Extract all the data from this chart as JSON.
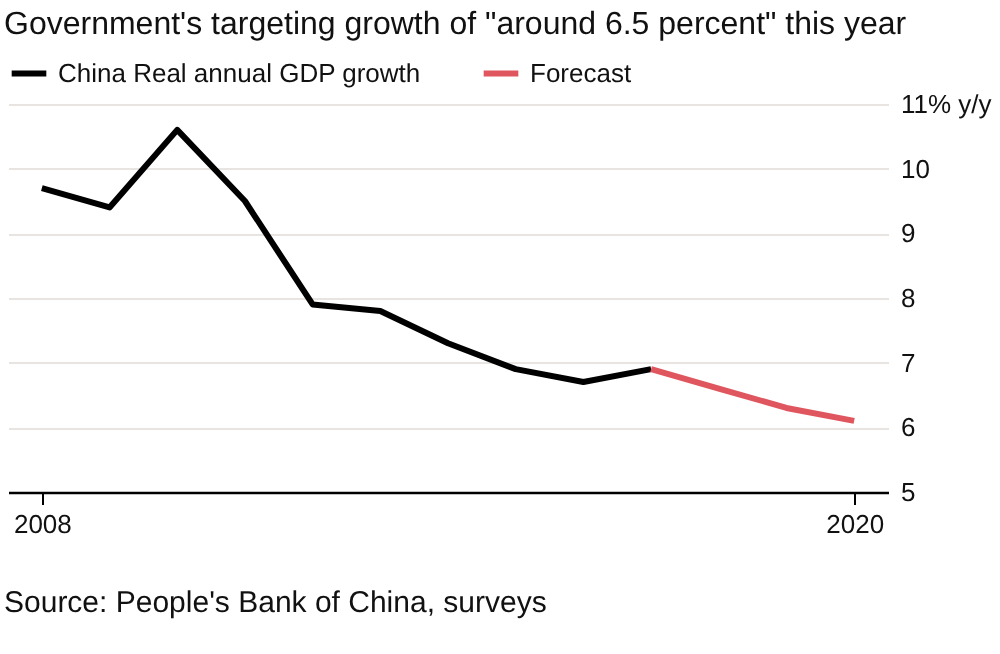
{
  "chart_data": {
    "type": "line",
    "title": "Government's targeting growth of \"around 6.5 percent\" this year",
    "x": [
      2008,
      2009,
      2010,
      2011,
      2012,
      2013,
      2014,
      2015,
      2016,
      2017,
      2018,
      2019,
      2020
    ],
    "series": [
      {
        "name": "China Real annual GDP growth",
        "color": "#000000",
        "values": [
          9.7,
          9.4,
          10.6,
          9.5,
          7.9,
          7.8,
          7.3,
          6.9,
          6.7,
          6.9,
          null,
          null,
          null
        ]
      },
      {
        "name": "Forecast",
        "color": "#e0565f",
        "values": [
          null,
          null,
          null,
          null,
          null,
          null,
          null,
          null,
          null,
          6.9,
          6.6,
          6.3,
          6.1
        ]
      }
    ],
    "xlim": [
      2007.5,
      2020.5
    ],
    "xticks": [
      2008,
      2020
    ],
    "ylim": [
      5,
      11
    ],
    "yticks": [
      5,
      6,
      7,
      8,
      9,
      10,
      {
        "value": 11,
        "label": "11% y/y"
      }
    ],
    "grid": "y",
    "legend": "top left",
    "marker": "none",
    "line_style": "solid",
    "annotations": [
      "Source: People's Bank of China, surveys"
    ]
  }
}
